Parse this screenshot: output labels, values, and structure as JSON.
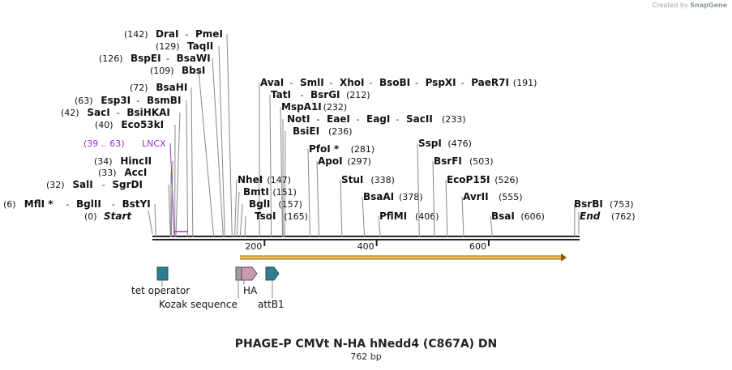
{
  "watermark": {
    "prefix": "Created by",
    "brand": "SnapGene"
  },
  "title": "PHAGE-P CMVt N-HA hNedd4 (C867A) DN",
  "length_label": "762 bp",
  "sequence": {
    "length": 762,
    "start_label": "Start",
    "start_pos": "(0)",
    "end_label": "End",
    "end_pos": "(762)"
  },
  "ruler_ticks": [
    "200",
    "400",
    "600"
  ],
  "colors": {
    "backbone": "#222222",
    "leader": "#888888",
    "orf_fill": "#f2c14e",
    "orf_stroke": "#8a5a00",
    "lncx": "#9b30d0",
    "tet": "#2e7d90",
    "kozak": "#9e9e9e",
    "ha": "#c99bb0",
    "attb1": "#2e7d90",
    "text": "#111111",
    "num": "#111111"
  },
  "sites": [
    {
      "pos": "(142)",
      "names": [
        "DraI",
        "PmeI"
      ],
      "side": "left"
    },
    {
      "pos": "(129)",
      "names": [
        "TaqII"
      ],
      "side": "left"
    },
    {
      "pos": "(126)",
      "names": [
        "BspEI",
        "BsaWI"
      ],
      "side": "left"
    },
    {
      "pos": "(109)",
      "names": [
        "BbsI"
      ],
      "side": "left"
    },
    {
      "pos": "(72)",
      "names": [
        "BsaHI"
      ],
      "side": "left"
    },
    {
      "pos": "(63)",
      "names": [
        "Esp3I",
        "BsmBI"
      ],
      "side": "left"
    },
    {
      "pos": "(42)",
      "names": [
        "SacI",
        "BsiHKAI"
      ],
      "side": "left"
    },
    {
      "pos": "(40)",
      "names": [
        "Eco53kI"
      ],
      "side": "left"
    },
    {
      "pos": "(39 .. 63)",
      "names": [
        "LNCX"
      ],
      "side": "left",
      "feature": true
    },
    {
      "pos": "(34)",
      "names": [
        "HincII"
      ],
      "side": "left"
    },
    {
      "pos": "(33)",
      "names": [
        "AccI"
      ],
      "side": "left"
    },
    {
      "pos": "(32)",
      "names": [
        "SalI",
        "SgrDI"
      ],
      "side": "left"
    },
    {
      "pos": "(6)",
      "names": [
        "MflI *",
        "BglII",
        "BstYI"
      ],
      "side": "left"
    },
    {
      "pos": "(191)",
      "names": [
        "AvaI",
        "SmlI",
        "XhoI",
        "BsoBI",
        "PspXI",
        "PaeR7I"
      ],
      "side": "right"
    },
    {
      "pos": "(212)",
      "names": [
        "TatI",
        "BsrGI"
      ],
      "side": "right"
    },
    {
      "pos": "(232)",
      "names": [
        "MspA1I"
      ],
      "side": "right"
    },
    {
      "pos": "(233)",
      "names": [
        "NotI",
        "EaeI",
        "EagI",
        "SacII"
      ],
      "side": "right"
    },
    {
      "pos": "(236)",
      "names": [
        "BsiEI"
      ],
      "side": "right"
    },
    {
      "pos": "(281)",
      "names": [
        "PfoI *"
      ],
      "side": "right"
    },
    {
      "pos": "(297)",
      "names": [
        "ApoI"
      ],
      "side": "right"
    },
    {
      "pos": "(147)",
      "names": [
        "NheI"
      ],
      "side": "right"
    },
    {
      "pos": "(151)",
      "names": [
        "BmtI"
      ],
      "side": "right"
    },
    {
      "pos": "(157)",
      "names": [
        "BglI"
      ],
      "side": "right"
    },
    {
      "pos": "(165)",
      "names": [
        "TsoI"
      ],
      "side": "right"
    },
    {
      "pos": "(338)",
      "names": [
        "StuI"
      ],
      "side": "right"
    },
    {
      "pos": "(378)",
      "names": [
        "BsaAI"
      ],
      "side": "right"
    },
    {
      "pos": "(406)",
      "names": [
        "PflMI"
      ],
      "side": "right"
    },
    {
      "pos": "(476)",
      "names": [
        "SspI"
      ],
      "side": "right"
    },
    {
      "pos": "(503)",
      "names": [
        "BsrFI"
      ],
      "side": "right"
    },
    {
      "pos": "(526)",
      "names": [
        "EcoP15I"
      ],
      "side": "right"
    },
    {
      "pos": "(555)",
      "names": [
        "AvrII"
      ],
      "side": "right"
    },
    {
      "pos": "(606)",
      "names": [
        "BsaI"
      ],
      "side": "right"
    },
    {
      "pos": "(753)",
      "names": [
        "BsrBI"
      ],
      "side": "right"
    }
  ],
  "features": {
    "tet": "tet operator",
    "kozak": "Kozak sequence",
    "ha": "HA",
    "attb1": "attB1"
  }
}
